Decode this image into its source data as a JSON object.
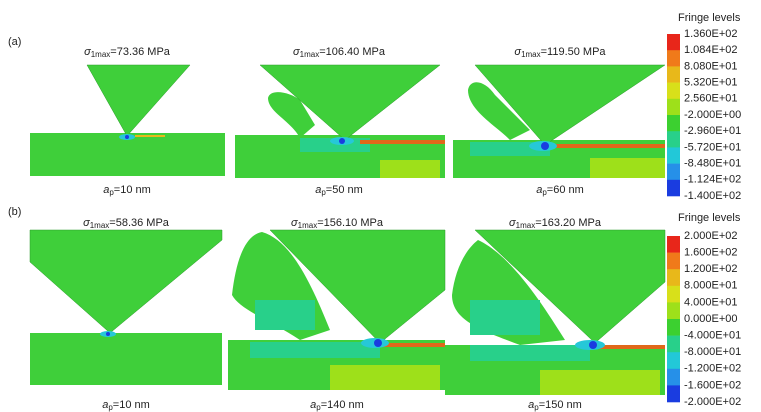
{
  "panels": [
    {
      "label": "(a)",
      "subfigures": [
        {
          "stress": {
            "symbol": "σ",
            "subscript": "1max",
            "text": "=73.36 MPa"
          },
          "depth": {
            "symbol": "a",
            "subscript": "p",
            "text": "=10 nm"
          }
        },
        {
          "stress": {
            "symbol": "σ",
            "subscript": "1max",
            "text": "=106.40 MPa"
          },
          "depth": {
            "symbol": "a",
            "subscript": "p",
            "text": "=50 nm"
          }
        },
        {
          "stress": {
            "symbol": "σ",
            "subscript": "1max",
            "text": "=119.50 MPa"
          },
          "depth": {
            "symbol": "a",
            "subscript": "p",
            "text": "=60 nm"
          }
        }
      ],
      "colorbar": {
        "title": "Fringe levels",
        "levels": [
          "1.360E+02",
          "1.084E+02",
          "8.080E+01",
          "5.320E+01",
          "2.560E+01",
          "-2.000E+00",
          "-2.960E+01",
          "-5.720E+01",
          "-8.480E+01",
          "-1.124E+02",
          "-1.400E+02"
        ],
        "colors": [
          "#e8261a",
          "#f07a1a",
          "#e8b81a",
          "#d8e01a",
          "#9ee01a",
          "#3cd030",
          "#28d08a",
          "#22c8d8",
          "#2690e8",
          "#1a3ce0"
        ]
      }
    },
    {
      "label": "(b)",
      "subfigures": [
        {
          "stress": {
            "symbol": "σ",
            "subscript": "1max",
            "text": "=58.36 MPa"
          },
          "depth": {
            "symbol": "a",
            "subscript": "p",
            "text": "=10 nm"
          }
        },
        {
          "stress": {
            "symbol": "σ",
            "subscript": "1max",
            "text": "=156.10 MPa"
          },
          "depth": {
            "symbol": "a",
            "subscript": "p",
            "text": "=140 nm"
          }
        },
        {
          "stress": {
            "symbol": "σ",
            "subscript": "1max",
            "text": "=163.20 MPa"
          },
          "depth": {
            "symbol": "a",
            "subscript": "p",
            "text": "=150 nm"
          }
        }
      ],
      "colorbar": {
        "title": "Fringe levels",
        "levels": [
          "2.000E+02",
          "1.600E+02",
          "1.200E+02",
          "8.000E+01",
          "4.000E+01",
          "0.000E+00",
          "-4.000E+01",
          "-8.000E+01",
          "-1.200E+02",
          "-1.600E+02",
          "-2.000E+02"
        ],
        "colors": [
          "#e8261a",
          "#f07a1a",
          "#e8b81a",
          "#d8e01a",
          "#9ee01a",
          "#3cd030",
          "#28d08a",
          "#22c8d8",
          "#2690e8",
          "#1a3ce0"
        ]
      }
    }
  ]
}
